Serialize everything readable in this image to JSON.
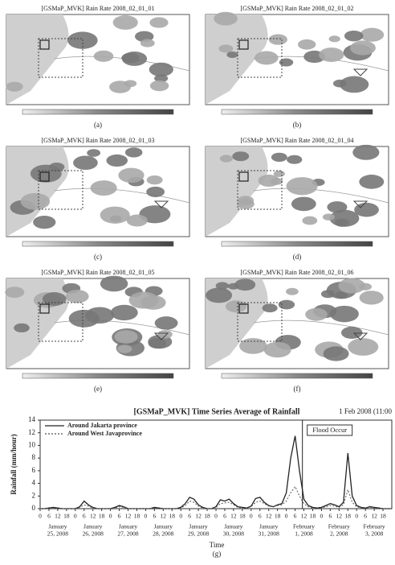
{
  "panels": [
    {
      "title": "[GSMaP_MVK] Rain Rate 2008_02_01_01",
      "label": "(a)"
    },
    {
      "title": "[GSMaP_MVK] Rain Rate 2008_02_01_02",
      "label": "(b)"
    },
    {
      "title": "[GSMaP_MVK] Rain Rate 2008_02_01_03",
      "label": "(c)"
    },
    {
      "title": "[GSMaP_MVK] Rain Rate 2008_02_01_04",
      "label": "(d)"
    },
    {
      "title": "[GSMaP_MVK] Rain Rate 2008_02_01_05",
      "label": "(e)"
    },
    {
      "title": "[GSMaP_MVK] Rain Rate 2008_02_01_06",
      "label": "(f)"
    }
  ],
  "chart_data": {
    "type": "line",
    "title": "[GSMaP_MVK] Time Series Average of Rainfall",
    "subtitle": "1 Feb 2008 (11:00",
    "y_label": "Rainfall (mm/hour)",
    "x_label": "Time",
    "panel_label": "(g)",
    "annotation": {
      "text": "Flood Occur",
      "x": 179
    },
    "x": [
      0,
      3,
      6,
      9,
      12,
      15,
      18,
      21,
      24,
      27,
      30,
      33,
      36,
      39,
      42,
      45,
      48,
      51,
      54,
      57,
      60,
      63,
      66,
      69,
      72,
      75,
      78,
      81,
      84,
      87,
      90,
      93,
      96,
      99,
      102,
      105,
      108,
      111,
      114,
      117,
      120,
      123,
      126,
      129,
      132,
      135,
      138,
      141,
      144,
      147,
      150,
      153,
      156,
      159,
      162,
      165,
      168,
      171,
      174,
      177,
      180,
      183,
      186,
      189,
      192,
      195,
      198,
      201,
      204,
      207,
      210,
      213,
      216,
      219,
      222,
      225,
      228,
      231,
      234,
      237,
      240
    ],
    "series": [
      {
        "name": "Around Jakarta province",
        "color": "#222222",
        "dash": "none",
        "values": [
          0,
          0,
          0.1,
          0.2,
          0.1,
          0,
          0,
          0,
          0,
          0.3,
          1.2,
          0.6,
          0.2,
          0,
          0,
          0,
          0,
          0.2,
          0.5,
          0.3,
          0,
          0,
          0,
          0,
          0,
          0,
          0.2,
          0.1,
          0,
          0,
          0,
          0,
          0.2,
          0.8,
          1.8,
          1.5,
          0.6,
          0.2,
          0,
          0,
          0.3,
          1.4,
          1.2,
          1.5,
          0.8,
          0.3,
          0.2,
          0.1,
          0.4,
          1.6,
          1.8,
          1.0,
          0.5,
          0.3,
          0.6,
          0.8,
          2.5,
          8.0,
          11.5,
          6.0,
          1.5,
          0.5,
          0.2,
          0.1,
          0.2,
          0.5,
          0.8,
          0.6,
          0.3,
          1.0,
          8.8,
          2.0,
          0.5,
          0.2,
          0.1,
          0.3,
          0.2,
          0.1,
          0,
          0,
          0
        ]
      },
      {
        "name": "Around West Javaprovince",
        "color": "#555555",
        "dash": "2,2",
        "values": [
          0,
          0,
          0.1,
          0.1,
          0.1,
          0,
          0,
          0,
          0,
          0.2,
          0.6,
          0.4,
          0.1,
          0,
          0,
          0,
          0,
          0.1,
          0.3,
          0.2,
          0,
          0,
          0,
          0,
          0,
          0,
          0.1,
          0.1,
          0,
          0,
          0,
          0,
          0.1,
          0.5,
          1.2,
          1.0,
          0.4,
          0.1,
          0,
          0,
          0.2,
          0.8,
          0.9,
          1.0,
          0.6,
          0.2,
          0.1,
          0.1,
          0.3,
          1.0,
          1.2,
          0.8,
          0.4,
          0.3,
          0.5,
          0.6,
          1.2,
          2.5,
          3.5,
          2.0,
          0.8,
          0.3,
          0.1,
          0.1,
          0.1,
          0.3,
          0.5,
          0.4,
          0.2,
          0.6,
          3.0,
          1.0,
          0.3,
          0.1,
          0.1,
          0.2,
          0.1,
          0,
          0,
          0,
          0
        ]
      }
    ],
    "xlim": [
      0,
      240
    ],
    "ylim": [
      0,
      14
    ],
    "yticks": [
      0,
      2,
      4,
      6,
      8,
      10,
      12,
      14
    ],
    "xticks": [
      {
        "value": 0,
        "label": "0"
      },
      {
        "value": 6,
        "label": "6"
      },
      {
        "value": 12,
        "label": "12"
      },
      {
        "value": 18,
        "label": "18"
      },
      {
        "value": 24,
        "label": "0"
      },
      {
        "value": 30,
        "label": "6"
      },
      {
        "value": 36,
        "label": "12"
      },
      {
        "value": 42,
        "label": "18"
      },
      {
        "value": 48,
        "label": "0"
      },
      {
        "value": 54,
        "label": "6"
      },
      {
        "value": 60,
        "label": "12"
      },
      {
        "value": 66,
        "label": "18"
      },
      {
        "value": 72,
        "label": "0"
      },
      {
        "value": 78,
        "label": "6"
      },
      {
        "value": 84,
        "label": "12"
      },
      {
        "value": 90,
        "label": "18"
      },
      {
        "value": 96,
        "label": "0"
      },
      {
        "value": 102,
        "label": "6"
      },
      {
        "value": 108,
        "label": "12"
      },
      {
        "value": 114,
        "label": "18"
      },
      {
        "value": 120,
        "label": "0"
      },
      {
        "value": 126,
        "label": "6"
      },
      {
        "value": 132,
        "label": "12"
      },
      {
        "value": 138,
        "label": "18"
      },
      {
        "value": 144,
        "label": "0"
      },
      {
        "value": 150,
        "label": "6"
      },
      {
        "value": 156,
        "label": "12"
      },
      {
        "value": 162,
        "label": "18"
      },
      {
        "value": 168,
        "label": "0"
      },
      {
        "value": 174,
        "label": "6"
      },
      {
        "value": 180,
        "label": "12"
      },
      {
        "value": 186,
        "label": "18"
      },
      {
        "value": 192,
        "label": "0"
      },
      {
        "value": 198,
        "label": "6"
      },
      {
        "value": 204,
        "label": "12"
      },
      {
        "value": 210,
        "label": "18"
      },
      {
        "value": 216,
        "label": "0"
      },
      {
        "value": 222,
        "label": "6"
      },
      {
        "value": 228,
        "label": "12"
      },
      {
        "value": 234,
        "label": "18"
      }
    ],
    "day_labels": [
      {
        "month": "January",
        "day": "25, 2008"
      },
      {
        "month": "January",
        "day": "26, 2008"
      },
      {
        "month": "January",
        "day": "27, 2008"
      },
      {
        "month": "January",
        "day": "28, 2008"
      },
      {
        "month": "January",
        "day": "29, 2008"
      },
      {
        "month": "January",
        "day": "30, 2008"
      },
      {
        "month": "January",
        "day": "31, 2008"
      },
      {
        "month": "February",
        "day": "1, 2008"
      },
      {
        "month": "February",
        "day": "2, 2008"
      },
      {
        "month": "February",
        "day": "3, 2008"
      }
    ]
  }
}
